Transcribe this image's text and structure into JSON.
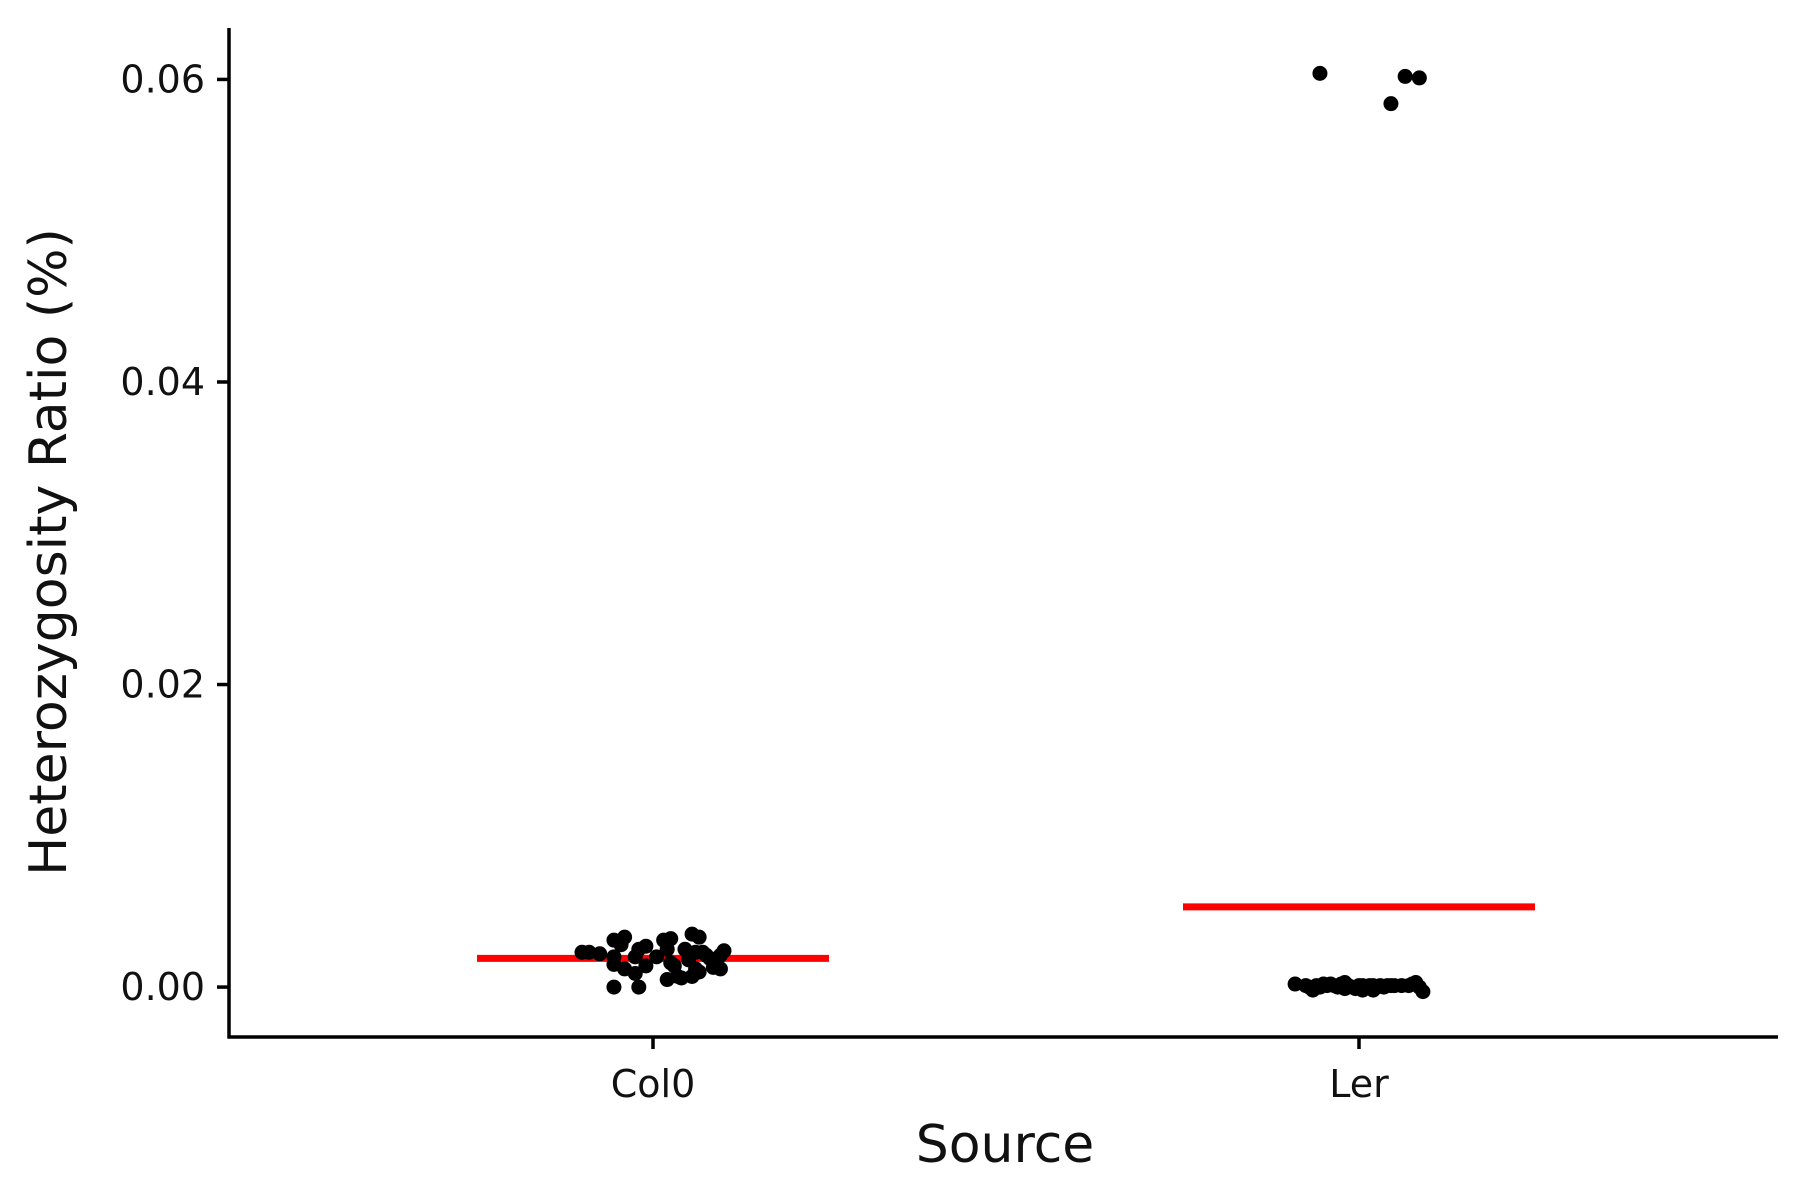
{
  "chart_data": {
    "type": "scatter",
    "title": "",
    "xlabel": "Source",
    "ylabel": "Heterozygosity Ratio (%)",
    "categories": [
      "Col0",
      "Ler"
    ],
    "ylim": [
      -0.0033,
      0.0634
    ],
    "yticks": [
      0.0,
      0.02,
      0.04,
      0.06
    ],
    "ytick_labels": [
      "0.00",
      "0.02",
      "0.04",
      "0.06"
    ],
    "grid": false,
    "legend": "none",
    "colors": {
      "points": "#000000",
      "mean_line": "#ff0000",
      "axis": "#000000"
    },
    "mean_lines": [
      {
        "category": "Col0",
        "value": 0.0019
      },
      {
        "category": "Ler",
        "value": 0.0053
      }
    ],
    "points": [
      {
        "category": "Col0",
        "x": -0.2,
        "y": 0.0023
      },
      {
        "category": "Col0",
        "x": -0.18,
        "y": 0.0023
      },
      {
        "category": "Col0",
        "x": -0.15,
        "y": 0.0022
      },
      {
        "category": "Col0",
        "x": -0.11,
        "y": 0.002
      },
      {
        "category": "Col0",
        "x": -0.11,
        "y": 0.0015
      },
      {
        "category": "Col0",
        "x": -0.11,
        "y": 0.0031
      },
      {
        "category": "Col0",
        "x": -0.11,
        "y": 0.0
      },
      {
        "category": "Col0",
        "x": -0.09,
        "y": 0.0028
      },
      {
        "category": "Col0",
        "x": -0.08,
        "y": 0.0012
      },
      {
        "category": "Col0",
        "x": -0.08,
        "y": 0.0033
      },
      {
        "category": "Col0",
        "x": -0.05,
        "y": 0.002
      },
      {
        "category": "Col0",
        "x": -0.05,
        "y": 0.0009
      },
      {
        "category": "Col0",
        "x": -0.04,
        "y": 0.0025
      },
      {
        "category": "Col0",
        "x": -0.04,
        "y": 0.0
      },
      {
        "category": "Col0",
        "x": -0.02,
        "y": 0.0014
      },
      {
        "category": "Col0",
        "x": -0.02,
        "y": 0.0027
      },
      {
        "category": "Col0",
        "x": 0.01,
        "y": 0.002
      },
      {
        "category": "Col0",
        "x": 0.03,
        "y": 0.0031
      },
      {
        "category": "Col0",
        "x": 0.04,
        "y": 0.0025
      },
      {
        "category": "Col0",
        "x": 0.04,
        "y": 0.0005
      },
      {
        "category": "Col0",
        "x": 0.05,
        "y": 0.0016
      },
      {
        "category": "Col0",
        "x": 0.05,
        "y": 0.0032
      },
      {
        "category": "Col0",
        "x": 0.06,
        "y": 0.0014
      },
      {
        "category": "Col0",
        "x": 0.07,
        "y": 0.0007
      },
      {
        "category": "Col0",
        "x": 0.08,
        "y": 0.0006
      },
      {
        "category": "Col0",
        "x": 0.09,
        "y": 0.0025
      },
      {
        "category": "Col0",
        "x": 0.1,
        "y": 0.0018
      },
      {
        "category": "Col0",
        "x": 0.11,
        "y": 0.0007
      },
      {
        "category": "Col0",
        "x": 0.11,
        "y": 0.0035
      },
      {
        "category": "Col0",
        "x": 0.12,
        "y": 0.0012
      },
      {
        "category": "Col0",
        "x": 0.12,
        "y": 0.0023
      },
      {
        "category": "Col0",
        "x": 0.13,
        "y": 0.001
      },
      {
        "category": "Col0",
        "x": 0.13,
        "y": 0.0033
      },
      {
        "category": "Col0",
        "x": 0.14,
        "y": 0.0023
      },
      {
        "category": "Col0",
        "x": 0.15,
        "y": 0.0021
      },
      {
        "category": "Col0",
        "x": 0.16,
        "y": 0.0019
      },
      {
        "category": "Col0",
        "x": 0.17,
        "y": 0.0013
      },
      {
        "category": "Col0",
        "x": 0.19,
        "y": 0.0012
      },
      {
        "category": "Col0",
        "x": 0.19,
        "y": 0.0021
      },
      {
        "category": "Col0",
        "x": 0.2,
        "y": 0.0024
      },
      {
        "category": "Ler",
        "x": -0.18,
        "y": 0.0002
      },
      {
        "category": "Ler",
        "x": -0.15,
        "y": 0.0001
      },
      {
        "category": "Ler",
        "x": -0.14,
        "y": 0.0
      },
      {
        "category": "Ler",
        "x": -0.13,
        "y": -0.0002
      },
      {
        "category": "Ler",
        "x": -0.12,
        "y": 0.0001
      },
      {
        "category": "Ler",
        "x": -0.11,
        "y": 0.0
      },
      {
        "category": "Ler",
        "x": -0.1,
        "y": 0.0002
      },
      {
        "category": "Ler",
        "x": -0.09,
        "y": 0.0001
      },
      {
        "category": "Ler",
        "x": -0.08,
        "y": 0.0002
      },
      {
        "category": "Ler",
        "x": -0.07,
        "y": 0.0001
      },
      {
        "category": "Ler",
        "x": -0.06,
        "y": 0.0
      },
      {
        "category": "Ler",
        "x": -0.05,
        "y": 0.0002
      },
      {
        "category": "Ler",
        "x": -0.04,
        "y": -0.0001
      },
      {
        "category": "Ler",
        "x": -0.04,
        "y": 0.0003
      },
      {
        "category": "Ler",
        "x": -0.03,
        "y": 0.0001
      },
      {
        "category": "Ler",
        "x": -0.02,
        "y": 0.0
      },
      {
        "category": "Ler",
        "x": -0.01,
        "y": -0.0001
      },
      {
        "category": "Ler",
        "x": 0.0,
        "y": 0.0001
      },
      {
        "category": "Ler",
        "x": 0.01,
        "y": -0.0002
      },
      {
        "category": "Ler",
        "x": 0.01,
        "y": 0.0001
      },
      {
        "category": "Ler",
        "x": 0.02,
        "y": 0.0
      },
      {
        "category": "Ler",
        "x": 0.03,
        "y": 0.0001
      },
      {
        "category": "Ler",
        "x": 0.04,
        "y": -0.0002
      },
      {
        "category": "Ler",
        "x": 0.04,
        "y": 0.0001
      },
      {
        "category": "Ler",
        "x": 0.05,
        "y": 0.0
      },
      {
        "category": "Ler",
        "x": 0.06,
        "y": 0.0001
      },
      {
        "category": "Ler",
        "x": 0.07,
        "y": 0.0
      },
      {
        "category": "Ler",
        "x": 0.08,
        "y": 0.0001
      },
      {
        "category": "Ler",
        "x": 0.09,
        "y": 0.0001
      },
      {
        "category": "Ler",
        "x": 0.1,
        "y": 0.0001
      },
      {
        "category": "Ler",
        "x": 0.12,
        "y": 0.0001
      },
      {
        "category": "Ler",
        "x": 0.14,
        "y": 0.0001
      },
      {
        "category": "Ler",
        "x": 0.15,
        "y": 0.0002
      },
      {
        "category": "Ler",
        "x": 0.16,
        "y": 0.0003
      },
      {
        "category": "Ler",
        "x": 0.17,
        "y": 0.0
      },
      {
        "category": "Ler",
        "x": 0.18,
        "y": -0.0003
      },
      {
        "category": "Ler",
        "x": -0.11,
        "y": 0.0604
      },
      {
        "category": "Ler",
        "x": 0.09,
        "y": 0.0584
      },
      {
        "category": "Ler",
        "x": 0.13,
        "y": 0.0602
      },
      {
        "category": "Ler",
        "x": 0.17,
        "y": 0.0601
      }
    ]
  }
}
